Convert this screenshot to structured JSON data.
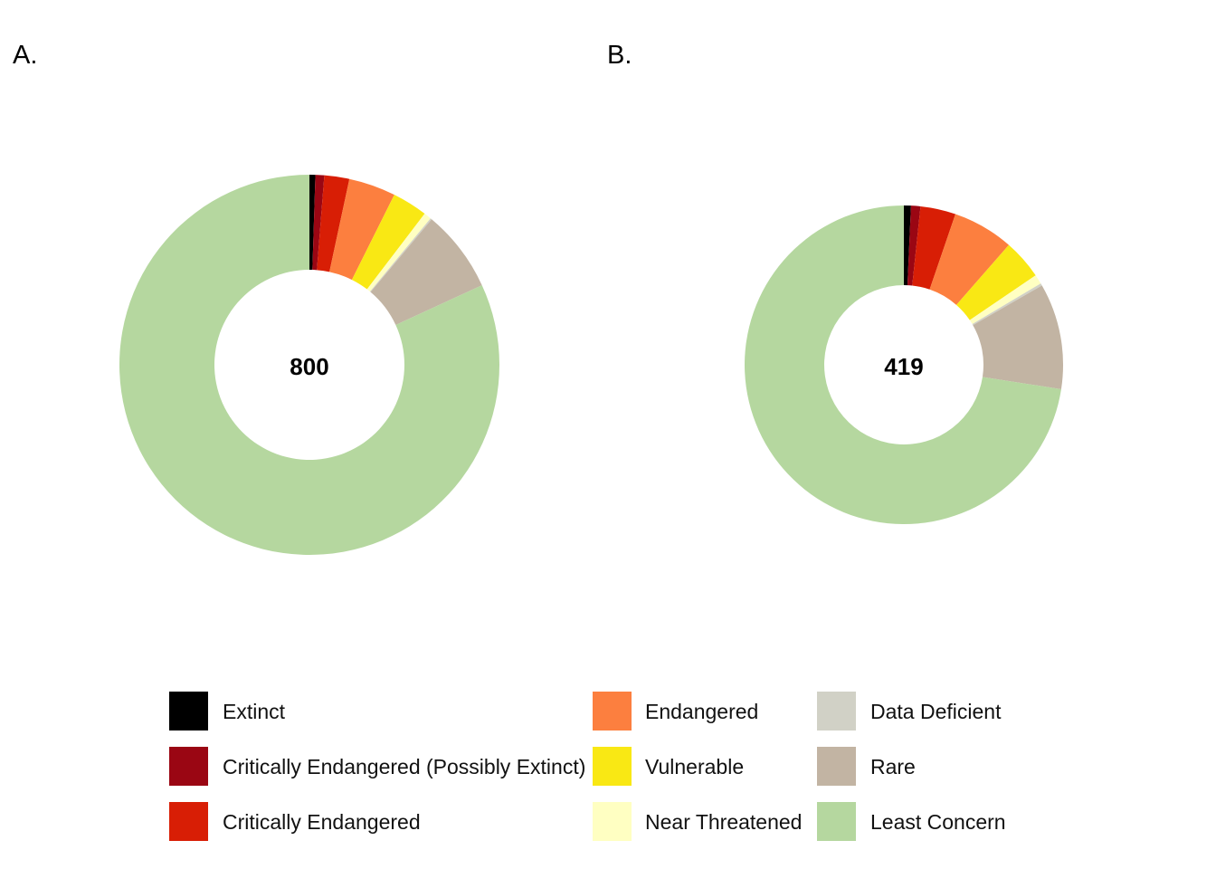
{
  "chart_data": [
    {
      "type": "pie",
      "panel_label": "A.",
      "center_label": "800",
      "categories": [
        "Extinct",
        "Critically Endangered (Possibly Extinct)",
        "Critically Endangered",
        "Endangered",
        "Vulnerable",
        "Near Threatened",
        "Data Deficient",
        "Rare",
        "Least Concern"
      ],
      "values": [
        4,
        6,
        17,
        32,
        24,
        5,
        1,
        56,
        655
      ],
      "total": 800
    },
    {
      "type": "pie",
      "panel_label": "B.",
      "center_label": "419",
      "categories": [
        "Extinct",
        "Critically Endangered (Possibly Extinct)",
        "Critically Endangered",
        "Endangered",
        "Vulnerable",
        "Near Threatened",
        "Data Deficient",
        "Rare",
        "Least Concern"
      ],
      "values": [
        3,
        4,
        15,
        26,
        17,
        4,
        1,
        45,
        304
      ],
      "total": 419
    }
  ],
  "legend": [
    {
      "label": "Extinct",
      "color": "#000000"
    },
    {
      "label": "Critically Endangered (Possibly Extinct)",
      "color": "#9a0613"
    },
    {
      "label": "Critically Endangered",
      "color": "#d81e05"
    },
    {
      "label": "Endangered",
      "color": "#fc7f3f"
    },
    {
      "label": "Vulnerable",
      "color": "#f9e814"
    },
    {
      "label": "Near Threatened",
      "color": "#ffffc2"
    },
    {
      "label": "Data Deficient",
      "color": "#d1d1c6"
    },
    {
      "label": "Rare",
      "color": "#c2b4a3"
    },
    {
      "label": "Least Concern",
      "color": "#b5d79f"
    }
  ]
}
